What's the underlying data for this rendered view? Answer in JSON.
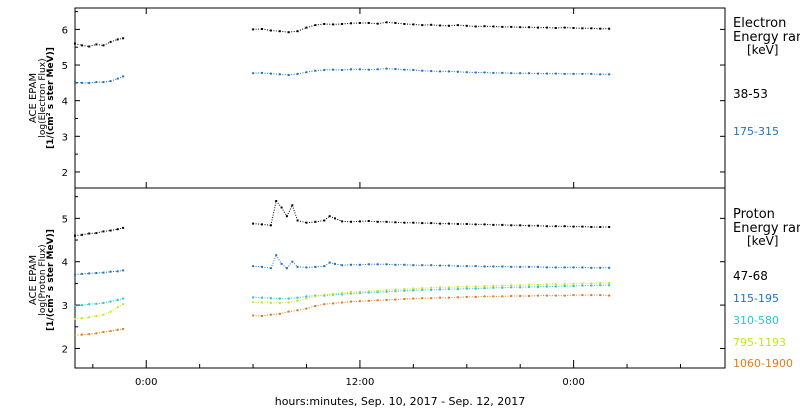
{
  "chart_data": [
    {
      "type": "scatter",
      "ylabel_lines": [
        "ACE EPAM",
        "log(Electron Flux)",
        "[1/(cm² s ster MeV)]"
      ],
      "ylim": [
        1.55,
        6.6
      ],
      "yticks": [
        2,
        3,
        4,
        5,
        6
      ],
      "legend": {
        "title_lines": [
          "Electron",
          "Energy ran",
          "[keV]"
        ],
        "placement": "right"
      },
      "series": [
        {
          "name": "38-53",
          "color": "#000000",
          "x": [
            -4.0,
            -3.6,
            -3.2,
            -2.8,
            -2.4,
            -2.0,
            -1.6,
            -1.3,
            6.0,
            6.5,
            7.0,
            7.5,
            8.0,
            8.5,
            9.0,
            9.5,
            10.0,
            10.5,
            11.0,
            11.5,
            12.0,
            12.5,
            13.0,
            13.5,
            14.0,
            14.5,
            15.0,
            15.5,
            16.0,
            16.5,
            17.0,
            17.5,
            18.0,
            18.5,
            19.0,
            19.5,
            20.0,
            20.5,
            21.0,
            21.5,
            22.0,
            22.5,
            23.0,
            23.5,
            24.0,
            24.5,
            25.0,
            25.5,
            26.0
          ],
          "y": [
            5.6,
            5.55,
            5.52,
            5.58,
            5.55,
            5.65,
            5.72,
            5.75,
            6.0,
            6.01,
            5.97,
            5.95,
            5.92,
            5.95,
            6.05,
            6.12,
            6.15,
            6.14,
            6.15,
            6.17,
            6.18,
            6.18,
            6.16,
            6.2,
            6.18,
            6.15,
            6.14,
            6.12,
            6.13,
            6.11,
            6.1,
            6.12,
            6.1,
            6.08,
            6.09,
            6.08,
            6.07,
            6.07,
            6.06,
            6.06,
            6.05,
            6.05,
            6.04,
            6.05,
            6.04,
            6.03,
            6.03,
            6.02,
            6.02
          ]
        },
        {
          "name": "175-315",
          "color": "#1a73c9",
          "x": [
            -4.0,
            -3.6,
            -3.2,
            -2.8,
            -2.4,
            -2.0,
            -1.6,
            -1.3,
            6.0,
            6.5,
            7.0,
            7.5,
            8.0,
            8.5,
            9.0,
            9.5,
            10.0,
            10.5,
            11.0,
            11.5,
            12.0,
            12.5,
            13.0,
            13.5,
            14.0,
            14.5,
            15.0,
            15.5,
            16.0,
            16.5,
            17.0,
            17.5,
            18.0,
            18.5,
            19.0,
            19.5,
            20.0,
            20.5,
            21.0,
            21.5,
            22.0,
            22.5,
            23.0,
            23.5,
            24.0,
            24.5,
            25.0,
            25.5,
            26.0
          ],
          "y": [
            4.52,
            4.5,
            4.5,
            4.52,
            4.52,
            4.55,
            4.62,
            4.68,
            4.77,
            4.78,
            4.76,
            4.74,
            4.72,
            4.75,
            4.8,
            4.84,
            4.86,
            4.87,
            4.86,
            4.88,
            4.88,
            4.87,
            4.88,
            4.9,
            4.89,
            4.87,
            4.86,
            4.84,
            4.83,
            4.82,
            4.82,
            4.81,
            4.8,
            4.79,
            4.79,
            4.78,
            4.78,
            4.77,
            4.77,
            4.77,
            4.76,
            4.76,
            4.76,
            4.75,
            4.75,
            4.75,
            4.75,
            4.74,
            4.74
          ]
        }
      ]
    },
    {
      "type": "scatter",
      "ylabel_lines": [
        "ACE EPAM",
        "log(Proton Flux)",
        "[1/(cm² s ster MeV)]"
      ],
      "ylim": [
        1.55,
        5.7
      ],
      "yticks": [
        2,
        3,
        4,
        5
      ],
      "xlim": [
        -4.0,
        32.5
      ],
      "xticks": [
        0,
        12,
        24
      ],
      "xtick_labels": [
        "0:00",
        "12:00",
        "0:00"
      ],
      "xlabel": "hours:minutes, Sep. 10, 2017 - Sep. 12, 2017",
      "legend": {
        "title_lines": [
          "Proton",
          "Energy ran",
          "[keV]"
        ],
        "placement": "right"
      },
      "series": [
        {
          "name": "47-68",
          "color": "#000000",
          "x": [
            -4.0,
            -3.6,
            -3.2,
            -2.8,
            -2.4,
            -2.0,
            -1.6,
            -1.3,
            6.0,
            6.5,
            7.0,
            7.3,
            7.6,
            7.9,
            8.2,
            8.5,
            9.0,
            9.5,
            10.0,
            10.3,
            10.6,
            11.0,
            11.5,
            12.0,
            12.5,
            13.0,
            13.5,
            14.0,
            14.5,
            15.0,
            15.5,
            16.0,
            16.5,
            17.0,
            17.5,
            18.0,
            18.5,
            19.0,
            19.5,
            20.0,
            20.5,
            21.0,
            21.5,
            22.0,
            22.5,
            23.0,
            23.5,
            24.0,
            24.5,
            25.0,
            25.5,
            26.0
          ],
          "y": [
            4.6,
            4.62,
            4.65,
            4.66,
            4.7,
            4.72,
            4.75,
            4.78,
            4.88,
            4.86,
            4.84,
            5.4,
            5.25,
            5.05,
            5.3,
            4.95,
            4.9,
            4.92,
            4.95,
            5.05,
            5.0,
            4.93,
            4.92,
            4.93,
            4.94,
            4.92,
            4.92,
            4.91,
            4.9,
            4.9,
            4.89,
            4.89,
            4.88,
            4.88,
            4.87,
            4.87,
            4.86,
            4.86,
            4.85,
            4.85,
            4.84,
            4.84,
            4.83,
            4.83,
            4.82,
            4.82,
            4.82,
            4.81,
            4.81,
            4.8,
            4.8,
            4.8
          ]
        },
        {
          "name": "115-195",
          "color": "#1a73c9",
          "x": [
            -4.0,
            -3.6,
            -3.2,
            -2.8,
            -2.4,
            -2.0,
            -1.6,
            -1.3,
            6.0,
            6.5,
            7.0,
            7.3,
            7.6,
            7.9,
            8.2,
            8.5,
            9.0,
            9.5,
            10.0,
            10.3,
            10.6,
            11.0,
            11.5,
            12.0,
            12.5,
            13.0,
            13.5,
            14.0,
            14.5,
            15.0,
            15.5,
            16.0,
            16.5,
            17.0,
            17.5,
            18.0,
            18.5,
            19.0,
            19.5,
            20.0,
            20.5,
            21.0,
            21.5,
            22.0,
            22.5,
            23.0,
            23.5,
            24.0,
            24.5,
            25.0,
            25.5,
            26.0
          ],
          "y": [
            3.7,
            3.72,
            3.73,
            3.74,
            3.75,
            3.77,
            3.78,
            3.8,
            3.9,
            3.88,
            3.85,
            4.15,
            3.95,
            3.85,
            4.0,
            3.88,
            3.87,
            3.88,
            3.9,
            3.98,
            3.95,
            3.92,
            3.93,
            3.93,
            3.94,
            3.94,
            3.94,
            3.93,
            3.93,
            3.92,
            3.92,
            3.92,
            3.91,
            3.91,
            3.9,
            3.9,
            3.9,
            3.89,
            3.89,
            3.89,
            3.88,
            3.88,
            3.88,
            3.88,
            3.87,
            3.87,
            3.87,
            3.87,
            3.87,
            3.86,
            3.86,
            3.86
          ]
        },
        {
          "name": "310-580",
          "color": "#22c8c8",
          "x": [
            -4.0,
            -3.6,
            -3.2,
            -2.8,
            -2.4,
            -2.0,
            -1.6,
            -1.3,
            6.0,
            6.5,
            7.0,
            7.5,
            8.0,
            8.5,
            9.0,
            9.5,
            10.0,
            10.5,
            11.0,
            11.5,
            12.0,
            12.5,
            13.0,
            13.5,
            14.0,
            14.5,
            15.0,
            15.5,
            16.0,
            16.5,
            17.0,
            17.5,
            18.0,
            18.5,
            19.0,
            19.5,
            20.0,
            20.5,
            21.0,
            21.5,
            22.0,
            22.5,
            23.0,
            23.5,
            24.0,
            24.5,
            25.0,
            25.5,
            26.0
          ],
          "y": [
            2.98,
            3.0,
            3.02,
            3.03,
            3.05,
            3.08,
            3.12,
            3.15,
            3.18,
            3.17,
            3.16,
            3.15,
            3.15,
            3.17,
            3.2,
            3.22,
            3.22,
            3.24,
            3.25,
            3.27,
            3.28,
            3.29,
            3.3,
            3.31,
            3.32,
            3.33,
            3.34,
            3.35,
            3.35,
            3.36,
            3.37,
            3.37,
            3.38,
            3.38,
            3.39,
            3.4,
            3.4,
            3.41,
            3.41,
            3.42,
            3.42,
            3.43,
            3.43,
            3.44,
            3.44,
            3.45,
            3.45,
            3.46,
            3.46
          ]
        },
        {
          "name": "795-1193",
          "color": "#c8e619",
          "x": [
            -4.0,
            -3.6,
            -3.2,
            -2.8,
            -2.4,
            -2.0,
            -1.6,
            -1.3,
            6.0,
            6.5,
            7.0,
            7.5,
            8.0,
            8.5,
            9.0,
            9.5,
            10.0,
            10.5,
            11.0,
            11.5,
            12.0,
            12.5,
            13.0,
            13.5,
            14.0,
            14.5,
            15.0,
            15.5,
            16.0,
            16.5,
            17.0,
            17.5,
            18.0,
            18.5,
            19.0,
            19.5,
            20.0,
            20.5,
            21.0,
            21.5,
            22.0,
            22.5,
            23.0,
            23.5,
            24.0,
            24.5,
            25.0,
            25.5,
            26.0
          ],
          "y": [
            2.68,
            2.7,
            2.72,
            2.75,
            2.78,
            2.85,
            2.95,
            3.02,
            3.07,
            3.06,
            3.05,
            3.05,
            3.06,
            3.1,
            3.15,
            3.2,
            3.24,
            3.26,
            3.28,
            3.3,
            3.31,
            3.32,
            3.33,
            3.35,
            3.36,
            3.37,
            3.38,
            3.39,
            3.4,
            3.41,
            3.41,
            3.42,
            3.43,
            3.43,
            3.44,
            3.45,
            3.45,
            3.46,
            3.46,
            3.47,
            3.47,
            3.48,
            3.48,
            3.49,
            3.49,
            3.5,
            3.5,
            3.51,
            3.51
          ]
        },
        {
          "name": "1060-1900",
          "color": "#e67817",
          "x": [
            -4.0,
            -3.6,
            -3.2,
            -2.8,
            -2.4,
            -2.0,
            -1.6,
            -1.3,
            6.0,
            6.5,
            7.0,
            7.5,
            8.0,
            8.5,
            9.0,
            9.5,
            10.0,
            10.5,
            11.0,
            11.5,
            12.0,
            12.5,
            13.0,
            13.5,
            14.0,
            14.5,
            15.0,
            15.5,
            16.0,
            16.5,
            17.0,
            17.5,
            18.0,
            18.5,
            19.0,
            19.5,
            20.0,
            20.5,
            21.0,
            21.5,
            22.0,
            22.5,
            23.0,
            23.5,
            24.0,
            24.5,
            25.0,
            25.5,
            26.0
          ],
          "y": [
            2.3,
            2.32,
            2.33,
            2.35,
            2.38,
            2.4,
            2.43,
            2.45,
            2.76,
            2.75,
            2.78,
            2.8,
            2.85,
            2.88,
            2.92,
            2.98,
            3.02,
            3.04,
            3.06,
            3.08,
            3.09,
            3.1,
            3.11,
            3.12,
            3.13,
            3.14,
            3.15,
            3.16,
            3.16,
            3.17,
            3.17,
            3.18,
            3.19,
            3.19,
            3.2,
            3.2,
            3.2,
            3.21,
            3.21,
            3.21,
            3.22,
            3.22,
            3.22,
            3.22,
            3.23,
            3.23,
            3.23,
            3.23,
            3.22
          ]
        }
      ]
    }
  ]
}
